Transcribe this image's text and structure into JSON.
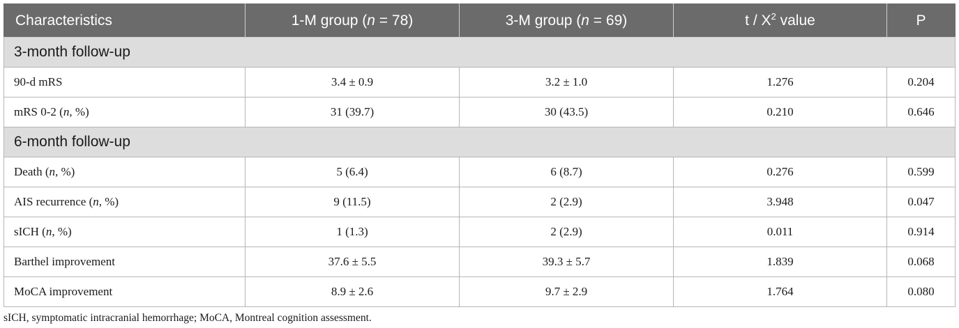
{
  "table": {
    "headers": {
      "characteristics": "Characteristics",
      "group1_prefix": "1-M group (",
      "group1_n": "n",
      "group1_suffix": " = 78)",
      "group3_prefix": "3-M group (",
      "group3_n": "n",
      "group3_suffix": " = 69)",
      "stat_prefix": "t / X",
      "stat_sup": "2",
      "stat_suffix": " value",
      "p": "P"
    },
    "sections": [
      {
        "title": "3-month follow-up",
        "rows": [
          {
            "label": "90-d mRS",
            "label_n": "",
            "label_tail": "",
            "g1": "3.4 ± 0.9",
            "g3": "3.2 ± 1.0",
            "stat": "1.276",
            "p": "0.204"
          },
          {
            "label": "mRS 0-2 (",
            "label_n": "n",
            "label_tail": ", %)",
            "g1": "31 (39.7)",
            "g3": "30 (43.5)",
            "stat": "0.210",
            "p": "0.646"
          }
        ]
      },
      {
        "title": "6-month follow-up",
        "rows": [
          {
            "label": "Death (",
            "label_n": "n",
            "label_tail": ", %)",
            "g1": "5 (6.4)",
            "g3": "6 (8.7)",
            "stat": "0.276",
            "p": "0.599"
          },
          {
            "label": "AIS recurrence (",
            "label_n": "n",
            "label_tail": ", %)",
            "g1": "9 (11.5)",
            "g3": "2 (2.9)",
            "stat": "3.948",
            "p": "0.047"
          },
          {
            "label": "sICH (",
            "label_n": "n",
            "label_tail": ", %)",
            "g1": "1 (1.3)",
            "g3": "2 (2.9)",
            "stat": "0.011",
            "p": "0.914"
          },
          {
            "label": "Barthel improvement",
            "label_n": "",
            "label_tail": "",
            "g1": "37.6 ± 5.5",
            "g3": "39.3 ± 5.7",
            "stat": "1.839",
            "p": "0.068"
          },
          {
            "label": "MoCA improvement",
            "label_n": "",
            "label_tail": "",
            "g1": "8.9 ± 2.6",
            "g3": "9.7 ± 2.9",
            "stat": "1.764",
            "p": "0.080"
          }
        ]
      }
    ]
  },
  "footnote": "sICH, symptomatic intracranial hemorrhage; MoCA, Montreal cognition assessment."
}
